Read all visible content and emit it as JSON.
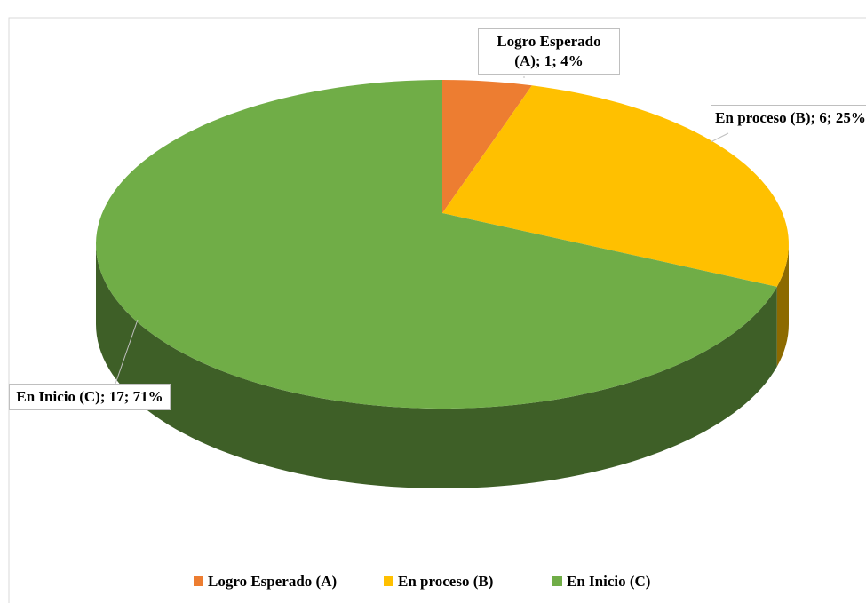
{
  "chart_data": {
    "type": "pie3d",
    "categories": [
      "Logro Esperado (A)",
      "En proceso (B)",
      "En Inicio (C)"
    ],
    "values": [
      1,
      6,
      17
    ],
    "value_labels": [
      "Logro Esperado (A); 1; 4%",
      "En proceso (B); 6; 25%",
      "En Inicio (C); 17; 71%"
    ],
    "colors": [
      "#ed7d31",
      "#ffc000",
      "#70ad47"
    ],
    "legend": "bottom"
  }
}
